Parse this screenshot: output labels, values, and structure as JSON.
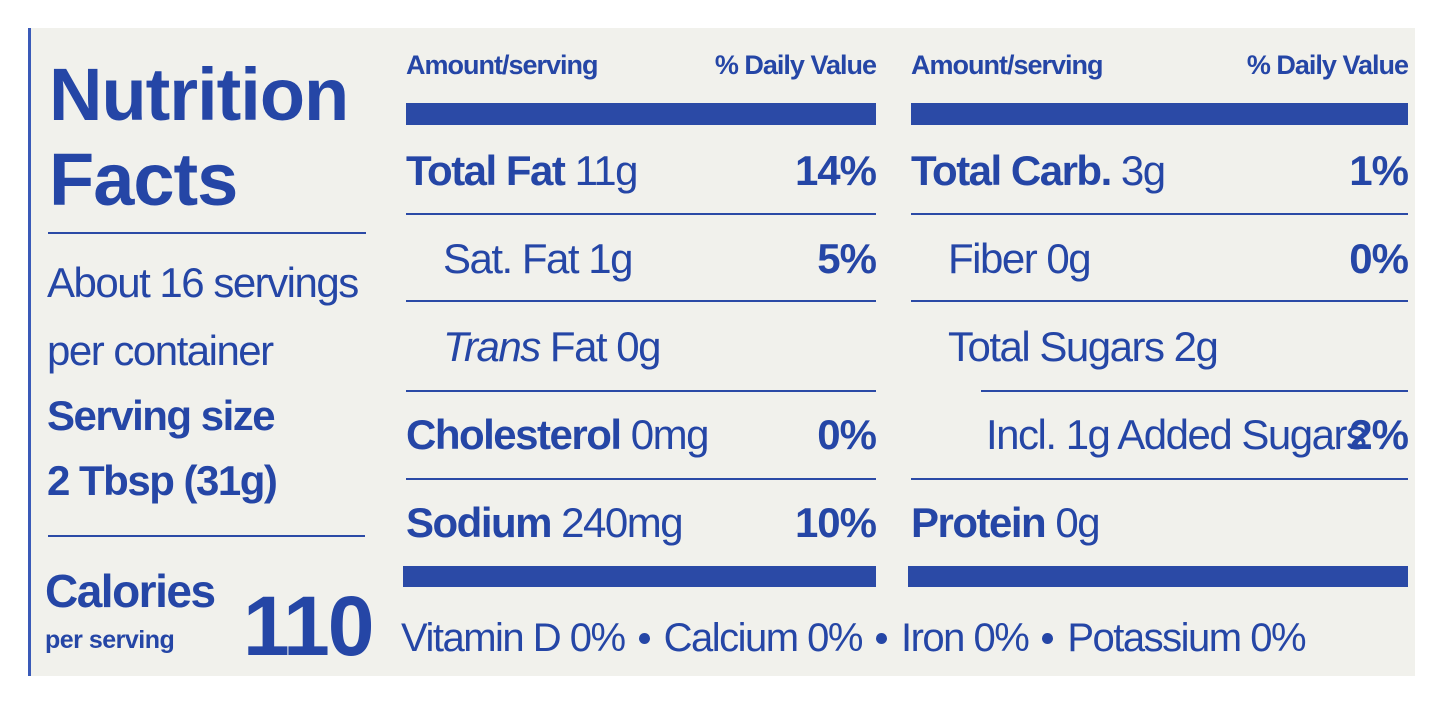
{
  "label": {
    "title": [
      "Nutrition",
      "Facts"
    ],
    "servings": [
      "About 16 servings",
      "per container"
    ],
    "serving_size": {
      "label": "Serving size",
      "value": "2 Tbsp (31g)"
    },
    "calories": {
      "label": "Calories",
      "sublabel": "per serving",
      "value": "110"
    },
    "tables": [
      {
        "header": {
          "amount": "Amount/serving",
          "dv": "% Daily Value"
        },
        "rows": [
          {
            "name": "Total Fat",
            "amount": "11g",
            "dv": "14%",
            "style": "bold",
            "indent": 0
          },
          {
            "name": "Sat. Fat",
            "amount": "1g",
            "dv": "5%",
            "style": "regular",
            "indent": 1
          },
          {
            "name": "Trans",
            "amount": "Fat 0g",
            "style": "italic",
            "indent": 1
          },
          {
            "name": "Cholesterol",
            "amount": "0mg",
            "dv": "0%",
            "style": "bold",
            "indent": 0
          },
          {
            "name": "Sodium",
            "amount": "240mg",
            "dv": "10%",
            "style": "bold",
            "indent": 0
          }
        ]
      },
      {
        "header": {
          "amount": "Amount/serving",
          "dv": "% Daily Value"
        },
        "rows": [
          {
            "name": "Total Carb.",
            "amount": "3g",
            "dv": "1%",
            "style": "bold",
            "indent": 0
          },
          {
            "name": "Fiber",
            "amount": "0g",
            "dv": "0%",
            "style": "regular",
            "indent": 1
          },
          {
            "name": "Total Sugars",
            "amount": "2g",
            "style": "regular",
            "indent": 1
          },
          {
            "name": "Incl. 1g Added Sugars",
            "dv": "2%",
            "style": "regular",
            "indent": 2
          },
          {
            "name": "Protein",
            "amount": "0g",
            "style": "bold",
            "indent": 0
          }
        ]
      }
    ],
    "footer": [
      "Vitamin D 0%",
      "Calcium 0%",
      "Iron 0%",
      "Potassium 0%"
    ]
  }
}
